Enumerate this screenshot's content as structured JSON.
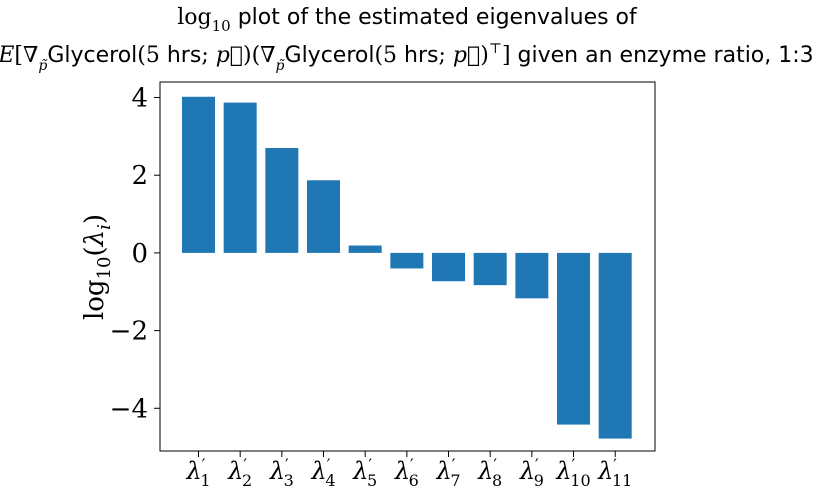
{
  "chart_data": {
    "type": "bar",
    "title_line1": "log10 plot of the estimated eigenvalues of",
    "title_line2": "E[∇p̃Glycerol(5 hrs; p⃗)(∇p̃Glycerol(5 hrs; p⃗)⊤] given an enzyme ratio, 1:3",
    "xlabel": "",
    "ylabel": "log10(λi)",
    "ylim": [
      -5.1,
      4.4
    ],
    "yticks": [
      -4,
      -2,
      0,
      2,
      4
    ],
    "ytick_labels": [
      "−4",
      "−2",
      "0",
      "2",
      "4"
    ],
    "categories": [
      "λ'1",
      "λ'2",
      "λ'3",
      "λ'4",
      "λ'5",
      "λ'6",
      "λ'7",
      "λ'8",
      "λ'9",
      "λ'10",
      "λ'11"
    ],
    "category_subscripts": [
      "1",
      "2",
      "3",
      "4",
      "5",
      "6",
      "7",
      "8",
      "9",
      "10",
      "11"
    ],
    "values": [
      4.02,
      3.87,
      2.7,
      1.87,
      0.19,
      -0.4,
      -0.73,
      -0.83,
      -1.17,
      -4.42,
      -4.78
    ],
    "bar_color": "#1f77b4",
    "grid": false,
    "legend": "none"
  }
}
